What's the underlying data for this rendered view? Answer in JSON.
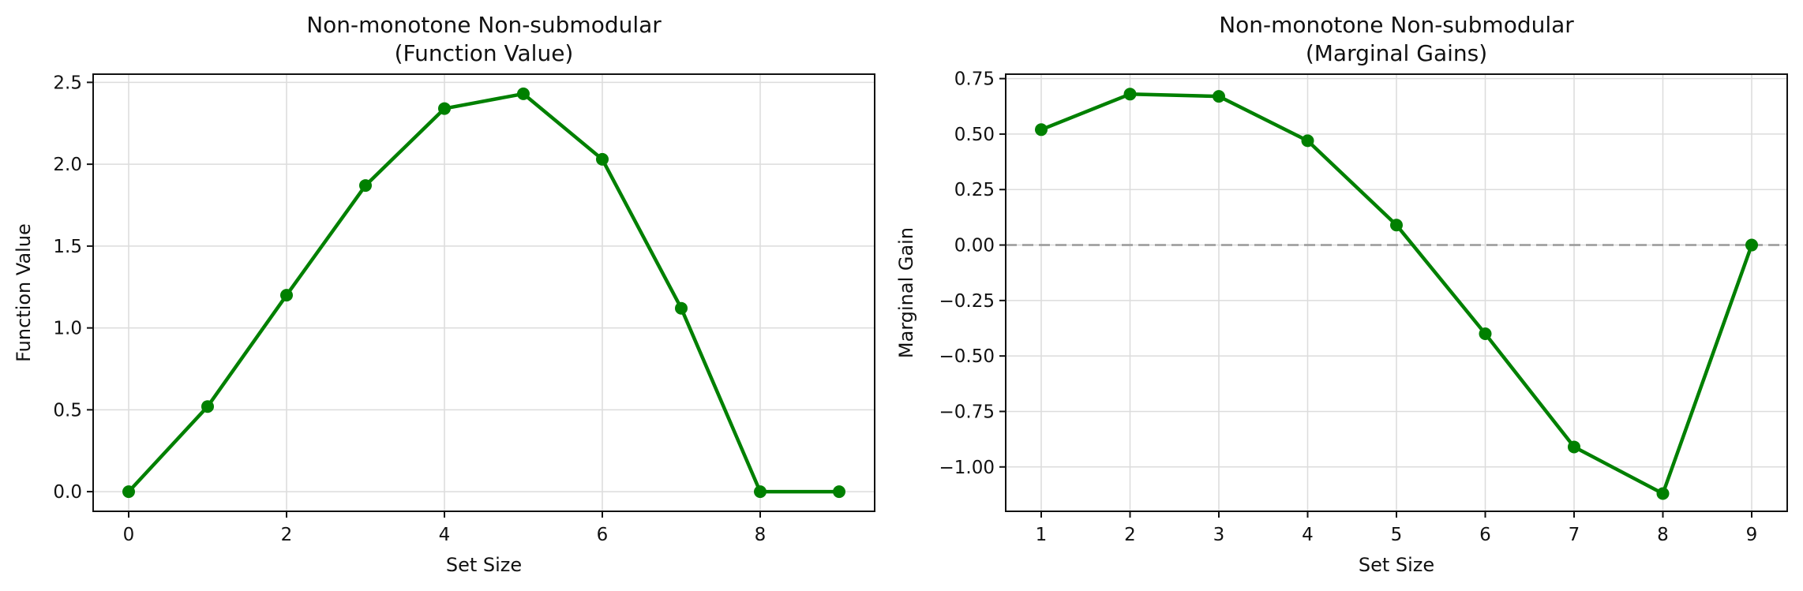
{
  "chart_data": [
    {
      "type": "line",
      "title": "Non-monotone Non-submodular\n(Function Value)",
      "xlabel": "Set Size",
      "ylabel": "Function Value",
      "x": [
        0,
        1,
        2,
        3,
        4,
        5,
        6,
        7,
        8,
        9
      ],
      "series": [
        {
          "values": [
            0.0,
            0.52,
            1.2,
            1.87,
            2.34,
            2.43,
            2.03,
            1.12,
            0.0,
            0.0
          ],
          "color": "#008000"
        }
      ],
      "xlim": [
        -0.45,
        9.45
      ],
      "ylim": [
        -0.12,
        2.55
      ],
      "xticks": [
        0,
        2,
        4,
        6,
        8
      ],
      "xtick_labels": [
        "0",
        "2",
        "4",
        "6",
        "8"
      ],
      "yticks": [
        0.0,
        0.5,
        1.0,
        1.5,
        2.0,
        2.5
      ],
      "ytick_labels": [
        "0.0",
        "0.5",
        "1.0",
        "1.5",
        "2.0",
        "2.5"
      ],
      "grid": true
    },
    {
      "type": "line",
      "title": "Non-monotone Non-submodular\n(Marginal Gains)",
      "xlabel": "Set Size",
      "ylabel": "Marginal Gain",
      "x": [
        1,
        2,
        3,
        4,
        5,
        6,
        7,
        8,
        9
      ],
      "series": [
        {
          "values": [
            0.52,
            0.68,
            0.67,
            0.47,
            0.09,
            -0.4,
            -0.91,
            -1.12,
            0.0
          ],
          "color": "#008000"
        }
      ],
      "xlim": [
        0.6,
        9.4
      ],
      "ylim": [
        -1.2,
        0.77
      ],
      "xticks": [
        1,
        2,
        3,
        4,
        5,
        6,
        7,
        8,
        9
      ],
      "xtick_labels": [
        "1",
        "2",
        "3",
        "4",
        "5",
        "6",
        "7",
        "8",
        "9"
      ],
      "yticks": [
        0.75,
        0.5,
        0.25,
        0.0,
        -0.25,
        -0.5,
        -0.75,
        -1.0
      ],
      "ytick_labels": [
        "0.75",
        "0.50",
        "0.25",
        "0.00",
        "−0.25",
        "−0.50",
        "−0.75",
        "−1.00"
      ],
      "reference_line": {
        "y": 0,
        "style": "dashed",
        "color": "#999999"
      },
      "grid": true
    }
  ]
}
